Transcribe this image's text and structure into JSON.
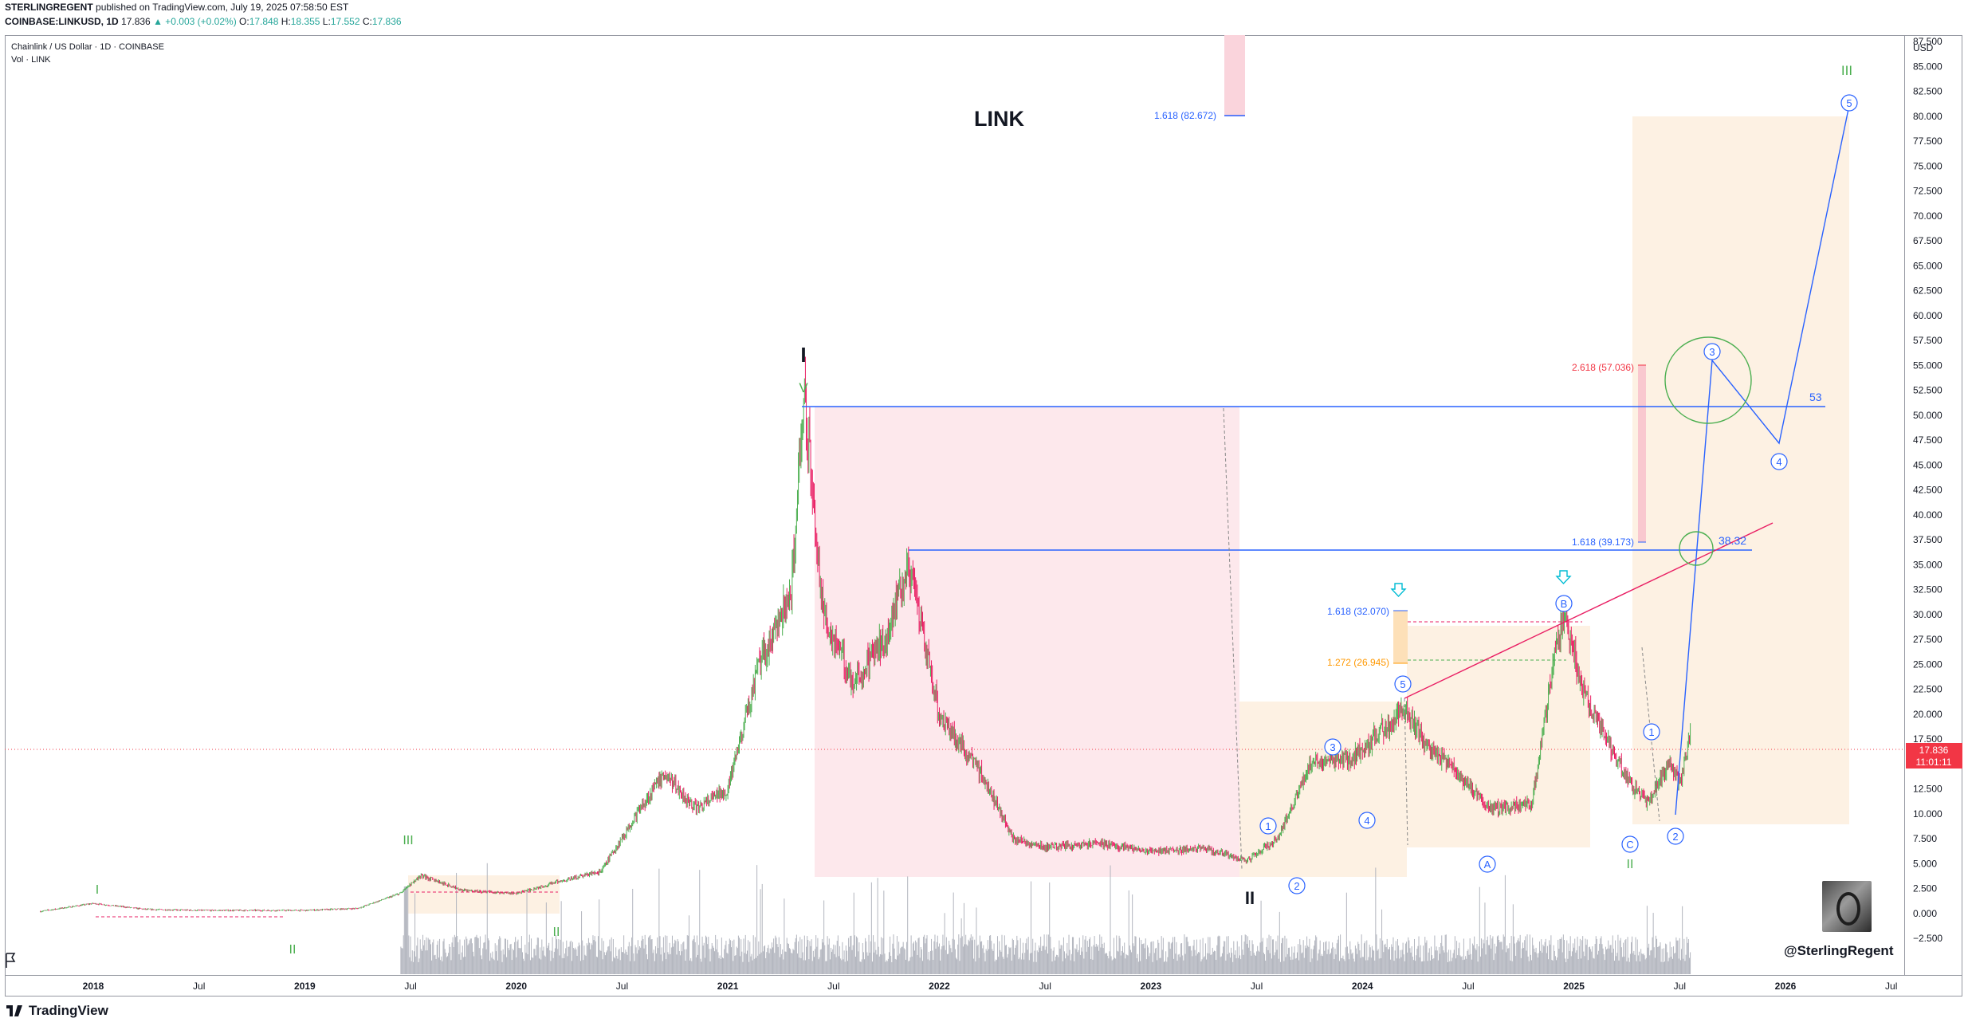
{
  "header": {
    "publisher": "STERLINGREGENT",
    "published_text": "published on TradingView.com, July 19, 2025 07:58:50 EST",
    "symbol": "COINBASE:LINKUSD, 1D",
    "last": "17.836",
    "change": "▲ +0.003 (+0.02%)",
    "ohlc": {
      "o_label": "O:",
      "o": "17.848",
      "h_label": "H:",
      "h": "18.355",
      "l_label": "L:",
      "l": "17.552",
      "c_label": "C:",
      "c": "17.836"
    }
  },
  "pane": {
    "title": "Chainlink / US Dollar · 1D · COINBASE",
    "volume_label": "Vol · LINK",
    "ticker_label": "LINK"
  },
  "price_axis": {
    "currency": "USD",
    "ticks": [
      "87.500",
      "85.000",
      "82.500",
      "80.000",
      "77.500",
      "75.000",
      "72.500",
      "70.000",
      "67.500",
      "65.000",
      "62.500",
      "60.000",
      "57.500",
      "55.000",
      "52.500",
      "50.000",
      "47.500",
      "45.000",
      "42.500",
      "40.000",
      "37.500",
      "35.000",
      "32.500",
      "30.000",
      "27.500",
      "25.000",
      "22.500",
      "20.000",
      "17.500",
      "15.000",
      "12.500",
      "10.000",
      "7.500",
      "5.000",
      "2.500",
      "0.000",
      "−2.500"
    ],
    "last_price": "17.836",
    "countdown": "11:01:11"
  },
  "time_axis": {
    "labels": [
      "2018",
      "Jul",
      "2019",
      "Jul",
      "2020",
      "Jul",
      "2021",
      "Jul",
      "2022",
      "Jul",
      "2023",
      "Jul",
      "2024",
      "Jul",
      "2025",
      "Jul",
      "2026",
      "Jul"
    ]
  },
  "annotations": {
    "fib_1618_top": "1.618 (82.672)",
    "fib_2618": "2.618 (57.036)",
    "fib_1618_mid": "1.618 (39.173)",
    "fib_1618_low": "1.618 (32.070)",
    "fib_1272": "1.272 (26.945)",
    "level_53": "53",
    "level_3832": "38.32",
    "wave_I": "I",
    "wave_II": "II",
    "wave_III": "III",
    "minor_V": "V",
    "minor_I_2018": "I",
    "minor_II_2018": "II",
    "minor_III_2019": "III",
    "minor_II_2020": "II",
    "minor_II_2025": "II",
    "circ_1_a": "1",
    "circ_2_a": "2",
    "circ_3_a": "3",
    "circ_4_a": "4",
    "circ_5_a": "5",
    "circ_A": "A",
    "circ_B": "B",
    "circ_C": "C",
    "circ_1_b": "1",
    "circ_2_b": "2",
    "circ_3_b": "3",
    "circ_4_b": "4",
    "circ_5_b": "5"
  },
  "watermark": "@SterlingRegent",
  "footer": {
    "brand": "TradingView"
  },
  "colors": {
    "up": "#26a69a",
    "down": "#ef5350",
    "candle_up": "#4caf50",
    "candle_down": "#e91e63",
    "fib_blue": "#2962ff",
    "fib_red": "#f23645",
    "fib_orange": "#ff9800",
    "wave_green": "#4caf50",
    "pink_zone": "#fce4ec",
    "peach_zone": "#fdf1e3",
    "volume": "#b2b5be",
    "last_price_tag": "#f23645"
  },
  "chart_data": {
    "type": "line",
    "title": "Chainlink / US Dollar · 1D · COINBASE",
    "xlabel": "",
    "ylabel": "USD",
    "ylim": [
      -2.5,
      87.5
    ],
    "grid": false,
    "x": [
      2017.75,
      2018.0,
      2018.25,
      2018.5,
      2018.75,
      2019.0,
      2019.25,
      2019.45,
      2019.55,
      2019.75,
      2020.0,
      2020.2,
      2020.4,
      2020.6,
      2020.7,
      2020.85,
      2021.0,
      2021.15,
      2021.3,
      2021.36,
      2021.45,
      2021.6,
      2021.75,
      2021.85,
      2022.0,
      2022.2,
      2022.35,
      2022.5,
      2022.75,
      2023.0,
      2023.25,
      2023.45,
      2023.6,
      2023.75,
      2023.95,
      2024.2,
      2024.3,
      2024.5,
      2024.6,
      2024.8,
      2024.95,
      2025.05,
      2025.25,
      2025.35,
      2025.45,
      2025.5,
      2025.55
    ],
    "series": [
      {
        "values": [
          0.2,
          1.0,
          0.4,
          0.3,
          0.3,
          0.3,
          0.5,
          2.0,
          3.8,
          2.3,
          2.0,
          3.2,
          4.2,
          11.0,
          14.0,
          10.5,
          12.5,
          25.0,
          32.0,
          52.7,
          30.0,
          23.0,
          28.0,
          35.0,
          20.0,
          14.0,
          7.5,
          6.6,
          7.0,
          6.2,
          6.5,
          5.3,
          7.5,
          15.0,
          15.5,
          20.5,
          17.0,
          13.0,
          10.5,
          11.0,
          30.8,
          22.0,
          13.5,
          11.0,
          15.0,
          13.0,
          17.836
        ]
      }
    ],
    "projection": {
      "wave_3_target": 57.0,
      "wave_4_target": 49.0,
      "wave_5_target": 83.0,
      "resistance_levels": [
        53.0,
        38.32
      ]
    }
  }
}
